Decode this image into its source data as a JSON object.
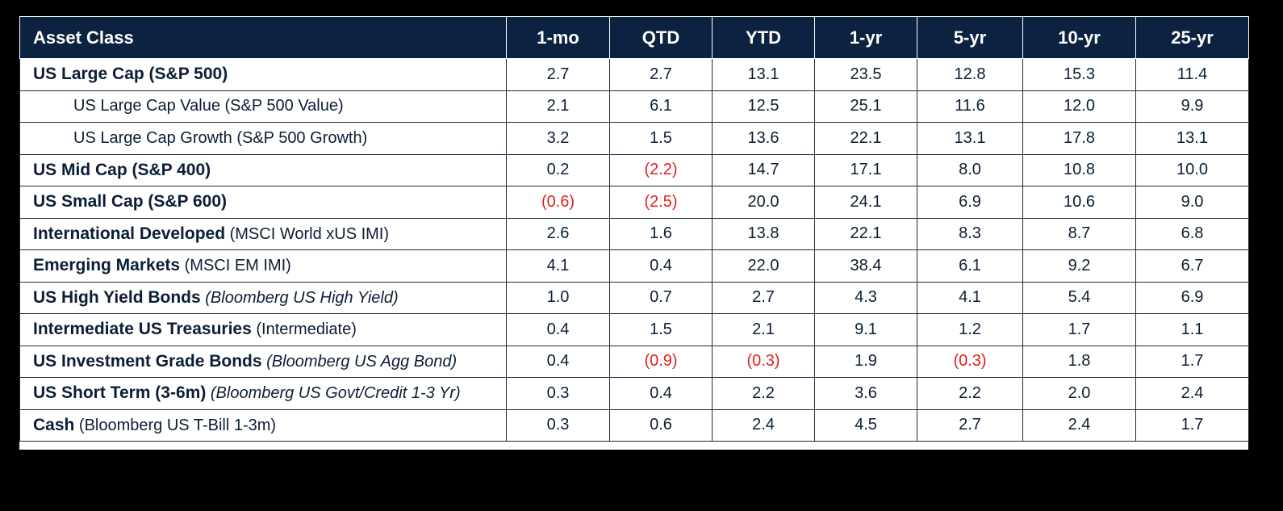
{
  "chart_data": {
    "type": "table",
    "columns": [
      "Asset Class",
      "1-mo",
      "QTD",
      "YTD",
      "1-yr",
      "5-yr",
      "10-yr",
      "25-yr"
    ],
    "rows": [
      {
        "name": "US Large Cap (S&P 500)",
        "index": "",
        "italic": false,
        "sub": false,
        "values": [
          "2.7",
          "2.7",
          "13.1",
          "23.5",
          "12.8",
          "15.3",
          "11.4"
        ]
      },
      {
        "name": "US Large Cap Value (S&P 500 Value)",
        "index": "",
        "italic": false,
        "sub": true,
        "values": [
          "2.1",
          "6.1",
          "12.5",
          "25.1",
          "11.6",
          "12.0",
          "9.9"
        ]
      },
      {
        "name": "US Large Cap Growth (S&P 500 Growth)",
        "index": "",
        "italic": false,
        "sub": true,
        "values": [
          "3.2",
          "1.5",
          "13.6",
          "22.1",
          "13.1",
          "17.8",
          "13.1"
        ]
      },
      {
        "name": "US Mid Cap (S&P 400)",
        "index": "",
        "italic": false,
        "sub": false,
        "values": [
          "0.2",
          "(2.2)",
          "14.7",
          "17.1",
          "8.0",
          "10.8",
          "10.0"
        ]
      },
      {
        "name": "US Small Cap (S&P 600)",
        "index": "",
        "italic": false,
        "sub": false,
        "values": [
          "(0.6)",
          "(2.5)",
          "20.0",
          "24.1",
          "6.9",
          "10.6",
          "9.0"
        ]
      },
      {
        "name": "International Developed",
        "index": "(MSCI World xUS IMI)",
        "italic": false,
        "sub": false,
        "values": [
          "2.6",
          "1.6",
          "13.8",
          "22.1",
          "8.3",
          "8.7",
          "6.8"
        ]
      },
      {
        "name": "Emerging Markets",
        "index": "(MSCI EM IMI)",
        "italic": false,
        "sub": false,
        "values": [
          "4.1",
          "0.4",
          "22.0",
          "38.4",
          "6.1",
          "9.2",
          "6.7"
        ]
      },
      {
        "name": "US High Yield Bonds",
        "index": "(Bloomberg US High Yield)",
        "italic": true,
        "sub": false,
        "values": [
          "1.0",
          "0.7",
          "2.7",
          "4.3",
          "4.1",
          "5.4",
          "6.9"
        ]
      },
      {
        "name": "Intermediate US Treasuries",
        "index": "(Intermediate)",
        "italic": false,
        "sub": false,
        "values": [
          "0.4",
          "1.5",
          "2.1",
          "9.1",
          "1.2",
          "1.7",
          "1.1"
        ]
      },
      {
        "name": "US Investment Grade Bonds",
        "index": "(Bloomberg US Agg Bond)",
        "italic": true,
        "sub": false,
        "values": [
          "0.4",
          "(0.9)",
          "(0.3)",
          "1.9",
          "(0.3)",
          "1.8",
          "1.7"
        ]
      },
      {
        "name": "US Short Term (3-6m)",
        "index": "(Bloomberg US Govt/Credit 1-3 Yr)",
        "italic": true,
        "sub": false,
        "values": [
          "0.3",
          "0.4",
          "2.2",
          "3.6",
          "2.2",
          "2.0",
          "2.4"
        ]
      },
      {
        "name": "Cash",
        "index": "(Bloomberg US T-Bill 1-3m)",
        "italic": false,
        "sub": false,
        "values": [
          "0.3",
          "0.6",
          "2.4",
          "4.5",
          "2.7",
          "2.4",
          "1.7"
        ]
      }
    ]
  },
  "colors": {
    "header_bg": "#0b2340",
    "header_text": "#ffffff",
    "body_text": "#0b1e36",
    "negative": "#e0201a",
    "border": "#1f2a3c"
  }
}
